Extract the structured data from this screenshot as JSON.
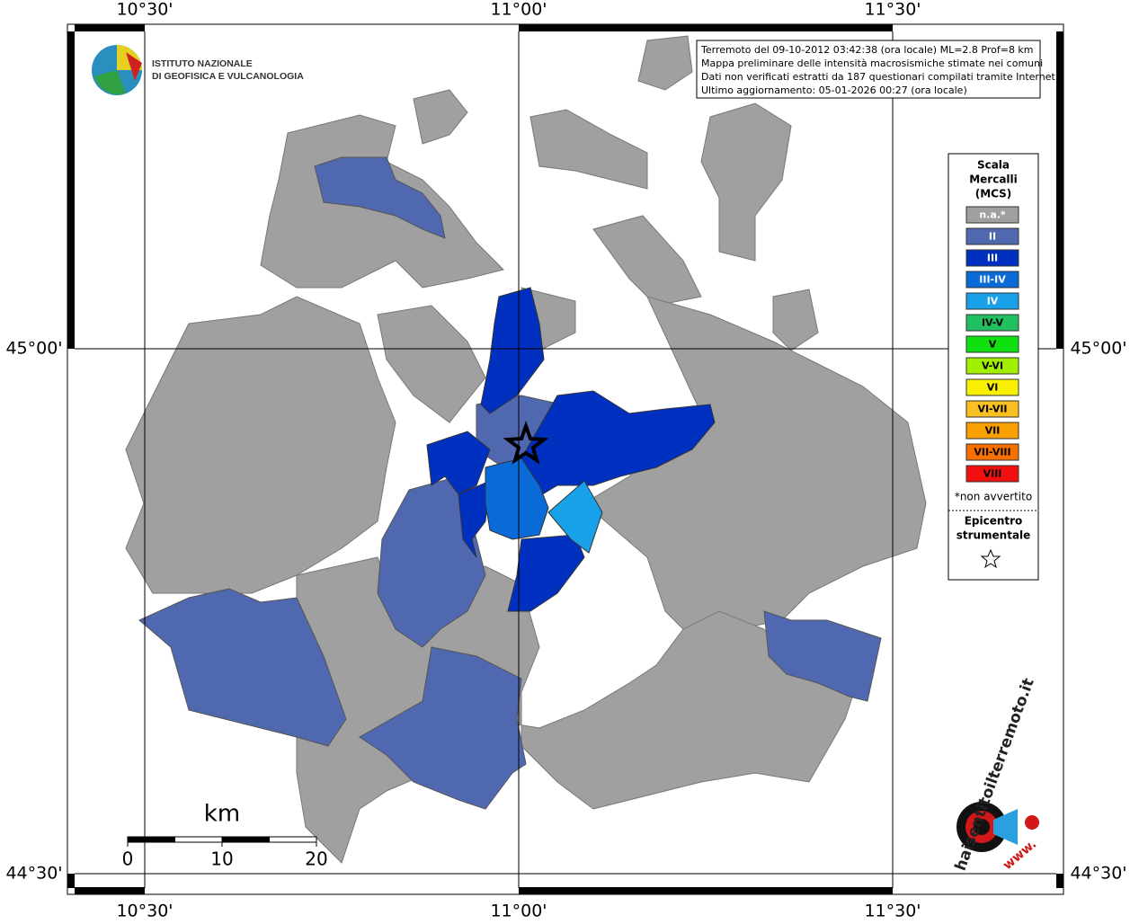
{
  "map": {
    "lon_labels": [
      "10°30'",
      "11°00'",
      "11°30'"
    ],
    "lat_labels": [
      "45°00'",
      "44°30'"
    ],
    "info": [
      "Terremoto del 09-10-2012 03:42:38 (ora locale) ML=2.8 Prof=8 km",
      "Mappa preliminare delle intensità macrosismiche stimate nei comuni",
      "Dati non verificati estratti da 187 questionari compilati tramite Internet.",
      "Ultimo aggiornamento: 05-01-2026 00:27 (ora locale)"
    ],
    "logo": [
      "ISTITUTO NAZIONALE",
      "DI GEOFISICA E VULCANOLOGIA"
    ],
    "legend": {
      "title": [
        "Scala",
        "Mercalli",
        "(MCS)"
      ],
      "classes": [
        {
          "label": "n.a.*",
          "color": "#a0a0a0"
        },
        {
          "label": "II",
          "color": "#5068b0"
        },
        {
          "label": "III",
          "color": "#0030c0"
        },
        {
          "label": "III-IV",
          "color": "#0a6ad8"
        },
        {
          "label": "IV",
          "color": "#18a0e8"
        },
        {
          "label": "IV-V",
          "color": "#20c060"
        },
        {
          "label": "V",
          "color": "#10e010"
        },
        {
          "label": "V-VI",
          "color": "#a0f000"
        },
        {
          "label": "VI",
          "color": "#f8f000"
        },
        {
          "label": "VI-VII",
          "color": "#f8c020"
        },
        {
          "label": "VII",
          "color": "#f8a000"
        },
        {
          "label": "VII-VIII",
          "color": "#f87000"
        },
        {
          "label": "VIII",
          "color": "#f01010"
        }
      ],
      "note": "*non avvertito",
      "epicenter": [
        "Epicentro",
        "strumentale"
      ]
    },
    "scale": {
      "unit": "km",
      "ticks": [
        0,
        10,
        20
      ]
    },
    "site": [
      "haisentitoilterremoto.it",
      "www."
    ]
  }
}
